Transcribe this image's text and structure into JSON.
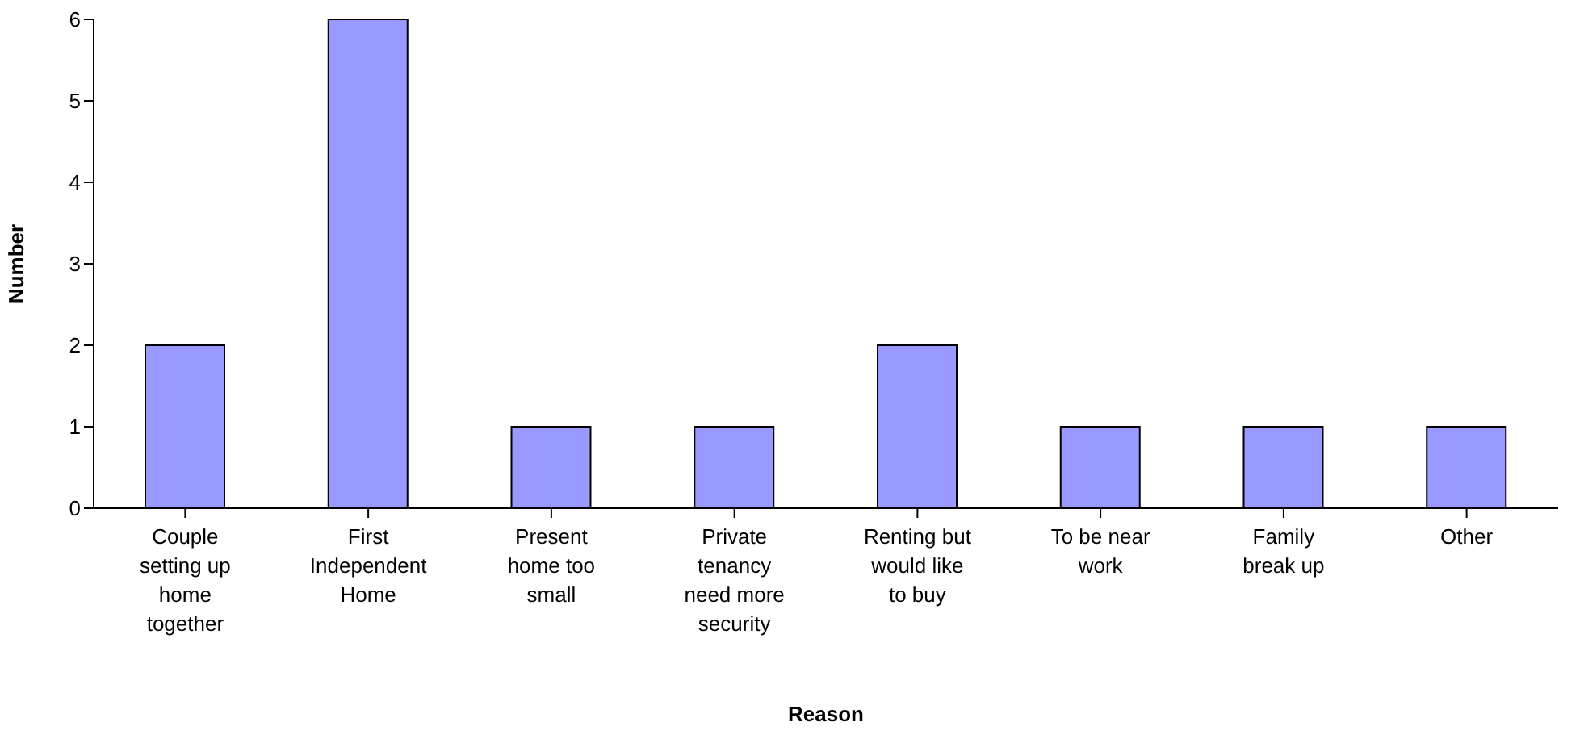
{
  "chart_data": {
    "type": "bar",
    "xlabel": "Reason",
    "ylabel": "Number",
    "categories": [
      "Couple setting up home together",
      "First Independent Home",
      "Present home too small",
      "Private tenancy need more security",
      "Renting but would like to buy",
      "To be near work",
      "Family break up",
      "Other"
    ],
    "values": [
      2,
      6,
      1,
      1,
      2,
      1,
      1,
      1
    ],
    "color": "#9999ff",
    "ylim": [
      0,
      6
    ],
    "yticks": [
      0,
      1,
      2,
      3,
      4,
      5,
      6
    ],
    "grid": false,
    "legend": false
  }
}
